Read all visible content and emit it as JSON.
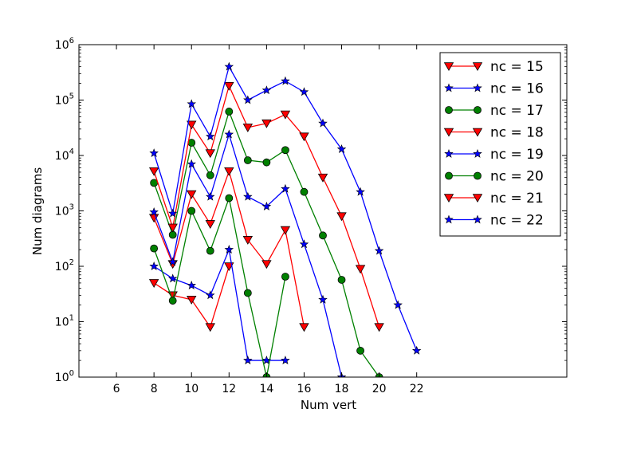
{
  "chart_data": {
    "type": "line",
    "title": "",
    "xlabel": "Num vert",
    "ylabel": "Num diagrams",
    "xlim": [
      4,
      30
    ],
    "ylim": [
      1,
      1000000
    ],
    "yscale": "log",
    "grid": false,
    "legend_position": "top-right",
    "x_ticks": [
      6,
      8,
      10,
      12,
      14,
      16,
      18,
      20,
      22
    ],
    "x_tick_labels": [
      "6",
      "8",
      "10",
      "12",
      "14",
      "16",
      "18",
      "20",
      "22"
    ],
    "y_ticks": [
      1,
      10,
      100,
      1000,
      10000,
      100000,
      1000000
    ],
    "y_tick_labels": [
      {
        "base": "10",
        "exp": "0"
      },
      {
        "base": "10",
        "exp": "1"
      },
      {
        "base": "10",
        "exp": "2"
      },
      {
        "base": "10",
        "exp": "3"
      },
      {
        "base": "10",
        "exp": "4"
      },
      {
        "base": "10",
        "exp": "5"
      },
      {
        "base": "10",
        "exp": "6"
      }
    ],
    "series": [
      {
        "name": "nc = 15",
        "color": "#ff0000",
        "marker": "triangle-down",
        "x": [
          8,
          9,
          10,
          11,
          12,
          13,
          14,
          15,
          16
        ],
        "y": [
          50,
          30,
          25,
          8,
          100,
          null,
          null,
          null,
          null
        ]
      },
      {
        "name": "nc = 16",
        "color": "#0000ff",
        "marker": "star",
        "x": [
          8,
          9,
          10,
          11,
          12,
          13,
          14,
          15
        ],
        "y": [
          100,
          60,
          45,
          30,
          200,
          2,
          2,
          2
        ]
      },
      {
        "name": "nc = 17",
        "color": "#008000",
        "marker": "circle",
        "x": [
          8,
          9,
          10,
          11,
          12,
          13,
          14,
          15
        ],
        "y": [
          210,
          24,
          1000,
          190,
          1700,
          33,
          1,
          65
        ]
      },
      {
        "name": "nc = 18",
        "color": "#ff0000",
        "marker": "triangle-down",
        "x": [
          8,
          9,
          10,
          11,
          12,
          13,
          14,
          15,
          16
        ],
        "y": [
          750,
          110,
          2000,
          580,
          5200,
          300,
          110,
          450,
          8
        ]
      },
      {
        "name": "nc = 19",
        "color": "#0000ff",
        "marker": "star",
        "x": [
          8,
          9,
          10,
          11,
          12,
          13,
          14,
          15,
          16,
          17,
          18
        ],
        "y": [
          950,
          120,
          7000,
          1800,
          24000,
          1800,
          1200,
          2500,
          250,
          25,
          1
        ]
      },
      {
        "name": "nc = 20",
        "color": "#008000",
        "marker": "circle",
        "x": [
          8,
          9,
          10,
          11,
          12,
          13,
          14,
          15,
          16,
          17,
          18,
          19,
          20
        ],
        "y": [
          3200,
          370,
          17000,
          4400,
          62000,
          8200,
          7500,
          12500,
          2200,
          360,
          57,
          3,
          1
        ]
      },
      {
        "name": "nc = 21",
        "color": "#ff0000",
        "marker": "triangle-down",
        "x": [
          8,
          9,
          10,
          11,
          12,
          13,
          14,
          15,
          16,
          17,
          18,
          19,
          20
        ],
        "y": [
          5200,
          500,
          36000,
          11000,
          180000,
          32000,
          38000,
          55000,
          22000,
          4000,
          800,
          90,
          8
        ]
      },
      {
        "name": "nc = 22",
        "color": "#0000ff",
        "marker": "star",
        "x": [
          8,
          9,
          10,
          11,
          12,
          13,
          14,
          15,
          16,
          17,
          18,
          19,
          20,
          21,
          22
        ],
        "y": [
          11000,
          900,
          85000,
          22000,
          400000,
          100000,
          150000,
          220000,
          140000,
          38000,
          13000,
          2200,
          190,
          20,
          3
        ]
      }
    ]
  }
}
